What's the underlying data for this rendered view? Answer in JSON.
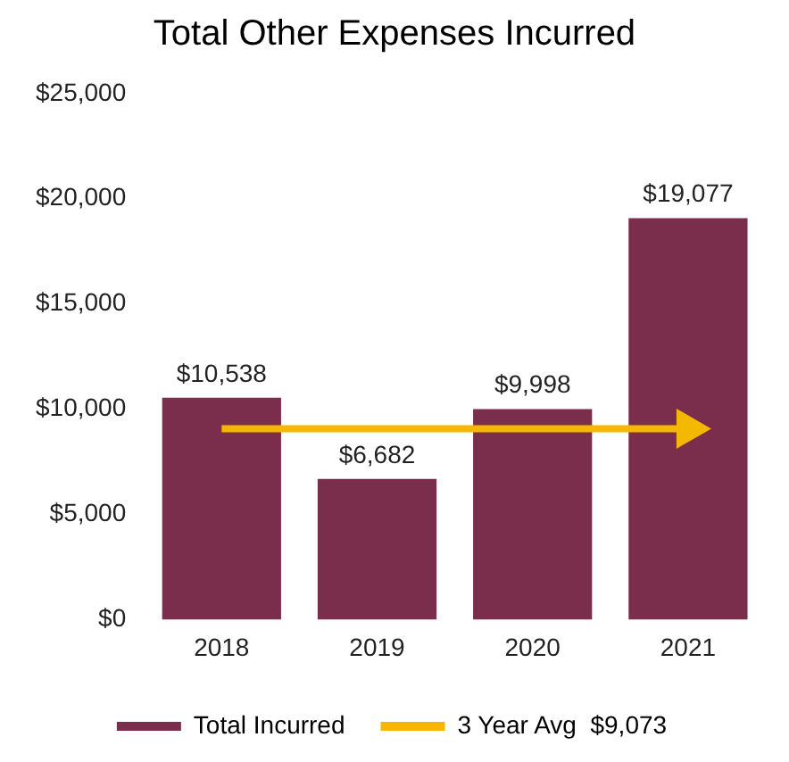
{
  "chart_data": {
    "type": "bar",
    "title": "Total Other Expenses Incurred",
    "categories": [
      "2018",
      "2019",
      "2020",
      "2021"
    ],
    "series": [
      {
        "name": "Total Incurred",
        "color": "#7b2e4c",
        "values": [
          10538,
          6682,
          9998,
          19077
        ],
        "value_labels": [
          "$10,538",
          "$6,682",
          "$9,998",
          "$19,077"
        ]
      },
      {
        "name": "3 Year Avg  $9,073",
        "type": "line",
        "color": "#f5b800",
        "values": [
          9073,
          9073,
          9073,
          9073
        ]
      }
    ],
    "ylim": [
      0,
      25000
    ],
    "yticks": [
      {
        "value": 0,
        "label": "$0"
      },
      {
        "value": 5000,
        "label": "$5,000"
      },
      {
        "value": 10000,
        "label": "$10,000"
      },
      {
        "value": 15000,
        "label": "$15,000"
      },
      {
        "value": 20000,
        "label": "$20,000"
      },
      {
        "value": 25000,
        "label": "$25,000"
      }
    ],
    "grid": false,
    "legend": "bottom"
  }
}
